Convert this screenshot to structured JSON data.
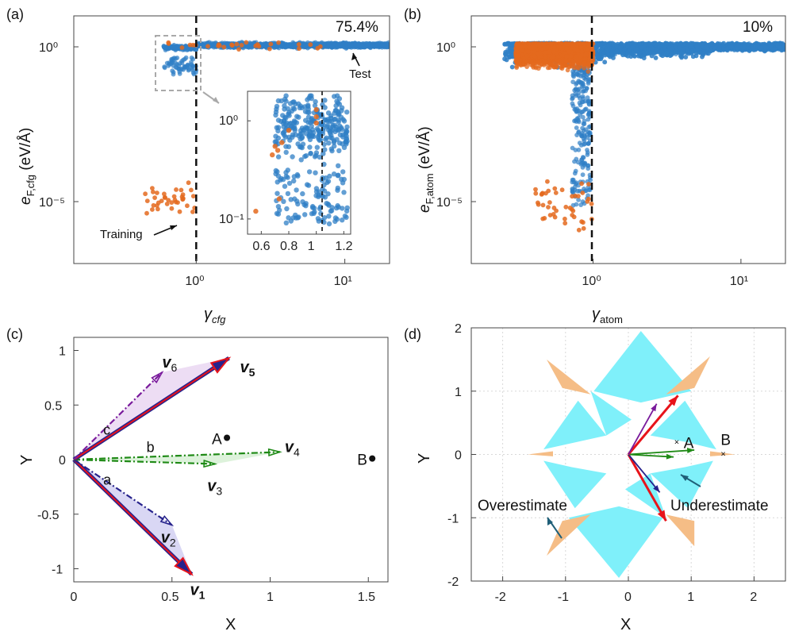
{
  "colors": {
    "blue": "#2f7fc6",
    "orange": "#e46a1e",
    "red": "#e8131a",
    "navy": "#27238c",
    "purple": "#7a1b9c",
    "green": "#1f8a16",
    "cyan": "#7ff0fa",
    "peach": "#f5bd86",
    "dashbox": "#a9a9a9"
  },
  "chart_data": [
    {
      "type": "scatter",
      "panel": "(a)",
      "xlabel": "γ",
      "xlabel_sub": "cfg",
      "ylabel_main": "e",
      "ylabel_sub": "F,cfg",
      "ylabel_unit": " (eV/Å)",
      "xscale": "log",
      "yscale": "log",
      "xlim": [
        0.15,
        20
      ],
      "ylim": [
        1e-07,
        10
      ],
      "xticks": [
        {
          "v": 1,
          "label": "10⁰"
        },
        {
          "v": 10,
          "label": "10¹"
        }
      ],
      "yticks": [
        {
          "v": 1e-05,
          "label": "10⁻⁵"
        },
        {
          "v": 1,
          "label": "10⁰"
        }
      ],
      "threshold_x": 1,
      "percent_label": "75.4%",
      "annotations": [
        {
          "text": "Test"
        },
        {
          "text": "Training"
        }
      ],
      "series": [
        {
          "name": "Test",
          "color": "blue",
          "cluster": "x from 0.55 to 20, e around 0.4–1.2"
        },
        {
          "name": "Training",
          "color": "orange",
          "cluster": "x from 0.45 to 1.0, e around 3e-6–3e-5"
        }
      ],
      "inset": {
        "xlim": [
          0.5,
          1.25
        ],
        "ylim": [
          0.07,
          2.0
        ],
        "xticks": [
          {
            "v": 0.6,
            "label": "0.6"
          },
          {
            "v": 0.8,
            "label": "0.8"
          },
          {
            "v": 1.0,
            "label": "1"
          },
          {
            "v": 1.2,
            "label": "1.2"
          }
        ],
        "yticks": [
          {
            "v": 0.1,
            "label": "10⁻¹"
          },
          {
            "v": 1,
            "label": "10⁰"
          }
        ],
        "threshold_x": 1
      }
    },
    {
      "type": "scatter",
      "panel": "(b)",
      "xlabel": "γ",
      "xlabel_sub": "atom",
      "ylabel_main": "e",
      "ylabel_sub": "F,atom",
      "ylabel_unit": " (eV/Å)",
      "xscale": "log",
      "yscale": "log",
      "xlim": [
        0.15,
        20
      ],
      "ylim": [
        1e-07,
        10
      ],
      "xticks": [
        {
          "v": 1,
          "label": "10⁰"
        },
        {
          "v": 10,
          "label": "10¹"
        }
      ],
      "yticks": [
        {
          "v": 1e-05,
          "label": "10⁻⁵"
        },
        {
          "v": 1,
          "label": "10⁰"
        }
      ],
      "threshold_x": 1,
      "percent_label": "10%",
      "series": [
        {
          "name": "Test",
          "color": "blue"
        },
        {
          "name": "Training",
          "color": "orange"
        }
      ]
    },
    {
      "type": "vector",
      "panel": "(c)",
      "xlabel": "X",
      "ylabel": "Y",
      "xlim": [
        0,
        1.6
      ],
      "ylim": [
        -1.12,
        1.12
      ],
      "xticks": [
        0,
        0.5,
        1,
        1.5
      ],
      "yticks": [
        -1,
        -0.5,
        0,
        0.5,
        1
      ],
      "vectors": [
        {
          "name": "v",
          "sub": "1",
          "x": 0.6,
          "y": -1.05,
          "color": "red",
          "style": "solid",
          "highlight": true
        },
        {
          "name": "v",
          "sub": "2",
          "x": 0.5,
          "y": -0.6,
          "color": "navy",
          "style": "dashdot",
          "highlight": false
        },
        {
          "name": "v",
          "sub": "3",
          "x": 0.72,
          "y": -0.04,
          "color": "green",
          "style": "dashdot",
          "highlight": false
        },
        {
          "name": "v",
          "sub": "4",
          "x": 1.05,
          "y": 0.07,
          "color": "green",
          "style": "dashdot",
          "highlight": false
        },
        {
          "name": "v",
          "sub": "5",
          "x": 0.79,
          "y": 0.93,
          "color": "red",
          "style": "solid",
          "highlight": true
        },
        {
          "name": "v",
          "sub": "6",
          "x": 0.45,
          "y": 0.8,
          "color": "purple",
          "style": "dashdot",
          "highlight": false
        }
      ],
      "points": [
        {
          "label": "A",
          "x": 0.78,
          "y": 0.2
        },
        {
          "label": "B",
          "x": 1.52,
          "y": 0.01
        }
      ],
      "pair_labels": [
        {
          "text": "a",
          "x": 0.15,
          "y": -0.23
        },
        {
          "text": "b",
          "x": 0.37,
          "y": 0.07
        },
        {
          "text": "c",
          "x": 0.15,
          "y": 0.23
        }
      ]
    },
    {
      "type": "vector",
      "panel": "(d)",
      "xlabel": "X",
      "ylabel": "Y",
      "xlim": [
        -2.5,
        2.5
      ],
      "ylim": [
        -2.0,
        2.0
      ],
      "xticks": [
        -2,
        -1,
        0,
        1,
        2
      ],
      "yticks": [
        -2,
        -1,
        0,
        1,
        2
      ],
      "grid": true,
      "region_labels": [
        {
          "text": "Overestimate",
          "color": "#d9721f"
        },
        {
          "text": "Underestimate",
          "color": "#27c7ea"
        }
      ],
      "points": [
        {
          "label": "A",
          "x": 0.78,
          "y": 0.2
        },
        {
          "label": "B",
          "x": 1.52,
          "y": 0.01
        }
      ]
    }
  ]
}
